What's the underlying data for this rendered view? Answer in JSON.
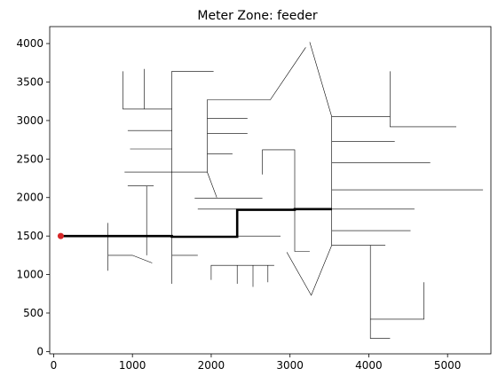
{
  "chart_data": {
    "type": "line",
    "title": "Meter Zone: feeder",
    "xlabel": "",
    "ylabel": "",
    "xlim": [
      -50,
      5550
    ],
    "ylim": [
      -30,
      4220
    ],
    "xticks": [
      0,
      1000,
      2000,
      3000,
      4000,
      5000
    ],
    "yticks": [
      0,
      500,
      1000,
      1500,
      2000,
      2500,
      3000,
      3500,
      4000
    ],
    "grid": false,
    "colors": {
      "network": "#000000",
      "highlight": "#000000",
      "marker": "#d62728"
    },
    "marker_point": {
      "x": 90,
      "y": 1500
    },
    "highlight_path": [
      [
        90,
        1500
      ],
      [
        1500,
        1500
      ],
      [
        1500,
        1490
      ],
      [
        2330,
        1490
      ],
      [
        2330,
        1840
      ],
      [
        3060,
        1840
      ],
      [
        3060,
        1850
      ],
      [
        3530,
        1850
      ]
    ],
    "network_segments": [
      [
        [
          1500,
          1500
        ],
        [
          1500,
          2330
        ],
        [
          1950,
          2330
        ]
      ],
      [
        [
          1500,
          2330
        ],
        [
          1500,
          3640
        ],
        [
          2030,
          3640
        ]
      ],
      [
        [
          1500,
          1500
        ],
        [
          1500,
          880
        ]
      ],
      [
        [
          1500,
          1250
        ],
        [
          1830,
          1250
        ]
      ],
      [
        [
          880,
          3640
        ],
        [
          880,
          3150
        ],
        [
          1500,
          3150
        ]
      ],
      [
        [
          1150,
          3670
        ],
        [
          1150,
          3150
        ]
      ],
      [
        [
          940,
          2870
        ],
        [
          1500,
          2870
        ]
      ],
      [
        [
          970,
          2630
        ],
        [
          1500,
          2630
        ]
      ],
      [
        [
          900,
          2330
        ],
        [
          1500,
          2330
        ]
      ],
      [
        [
          940,
          2150
        ],
        [
          1270,
          2150
        ]
      ],
      [
        [
          1180,
          2150
        ],
        [
          1180,
          1250
        ]
      ],
      [
        [
          690,
          1670
        ],
        [
          690,
          1050
        ]
      ],
      [
        [
          690,
          1250
        ],
        [
          1000,
          1250
        ],
        [
          1250,
          1150
        ]
      ],
      [
        [
          1950,
          2330
        ],
        [
          1950,
          3270
        ],
        [
          2750,
          3270
        ],
        [
          3200,
          3950
        ]
      ],
      [
        [
          1950,
          3030
        ],
        [
          2460,
          3030
        ]
      ],
      [
        [
          1950,
          2830
        ],
        [
          2460,
          2830
        ]
      ],
      [
        [
          1950,
          2570
        ],
        [
          2270,
          2570
        ]
      ],
      [
        [
          1950,
          2330
        ],
        [
          2070,
          2000
        ]
      ],
      [
        [
          1790,
          1990
        ],
        [
          2650,
          1990
        ]
      ],
      [
        [
          1830,
          1850
        ],
        [
          3060,
          1850
        ]
      ],
      [
        [
          2330,
          1500
        ],
        [
          2880,
          1500
        ]
      ],
      [
        [
          2650,
          2300
        ],
        [
          2650,
          2620
        ],
        [
          3060,
          2620
        ],
        [
          3060,
          1300
        ],
        [
          3250,
          1300
        ]
      ],
      [
        [
          2000,
          930
        ],
        [
          2000,
          1120
        ],
        [
          2800,
          1120
        ]
      ],
      [
        [
          2330,
          1120
        ],
        [
          2330,
          880
        ]
      ],
      [
        [
          2530,
          1120
        ],
        [
          2530,
          840
        ]
      ],
      [
        [
          2720,
          1120
        ],
        [
          2720,
          900
        ]
      ],
      [
        [
          3250,
          4020
        ],
        [
          3530,
          3050
        ],
        [
          3530,
          1850
        ]
      ],
      [
        [
          3530,
          1850
        ],
        [
          3530,
          1380
        ],
        [
          3270,
          730
        ],
        [
          2960,
          1290
        ]
      ],
      [
        [
          3530,
          3050
        ],
        [
          4270,
          3050
        ],
        [
          4270,
          3640
        ]
      ],
      [
        [
          4270,
          3050
        ],
        [
          4270,
          2920
        ],
        [
          5110,
          2920
        ]
      ],
      [
        [
          3530,
          2730
        ],
        [
          4330,
          2730
        ]
      ],
      [
        [
          3530,
          2450
        ],
        [
          4780,
          2450
        ]
      ],
      [
        [
          3530,
          2100
        ],
        [
          5450,
          2100
        ]
      ],
      [
        [
          3530,
          1850
        ],
        [
          4580,
          1850
        ]
      ],
      [
        [
          3530,
          1570
        ],
        [
          4530,
          1570
        ]
      ],
      [
        [
          3530,
          1380
        ],
        [
          4210,
          1380
        ]
      ],
      [
        [
          4020,
          1380
        ],
        [
          4020,
          170
        ],
        [
          4270,
          170
        ]
      ],
      [
        [
          4020,
          420
        ],
        [
          4700,
          420
        ],
        [
          4700,
          900
        ]
      ]
    ]
  }
}
